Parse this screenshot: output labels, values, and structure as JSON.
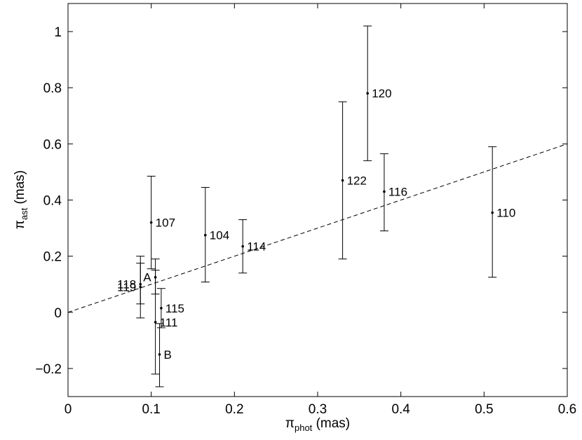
{
  "chart_data": {
    "type": "scatter",
    "title": "",
    "xlabel": {
      "symbol": "π",
      "subscript": "phot",
      "unit": " (mas)"
    },
    "ylabel": {
      "symbol": "π",
      "subscript": "ast",
      "unit": " (mas)"
    },
    "xlim": [
      0,
      0.6
    ],
    "ylim": [
      -0.3,
      1.1
    ],
    "xticks": [
      0,
      0.1,
      0.2,
      0.3,
      0.4,
      0.5,
      0.6
    ],
    "xtick_labels": [
      "0",
      "0.1",
      "0.2",
      "0.3",
      "0.4",
      "0.5",
      "0.6"
    ],
    "yticks": [
      -0.2,
      0,
      0.2,
      0.4,
      0.6,
      0.8,
      1.0
    ],
    "ytick_labels": [
      "−0.2",
      "0",
      "0.2",
      "0.4",
      "0.6",
      "0.8",
      "1"
    ],
    "grid": false,
    "reference_line": {
      "style": "dashed",
      "slope": 1,
      "intercept": 0
    },
    "points": [
      {
        "label": "120",
        "x": 0.36,
        "y": 0.78,
        "err_low": 0.54,
        "err_high": 1.02,
        "label_side": "right"
      },
      {
        "label": "122",
        "x": 0.33,
        "y": 0.47,
        "err_low": 0.19,
        "err_high": 0.75,
        "label_side": "right"
      },
      {
        "label": "116",
        "x": 0.38,
        "y": 0.43,
        "err_low": 0.29,
        "err_high": 0.565,
        "label_side": "right"
      },
      {
        "label": "110",
        "x": 0.51,
        "y": 0.355,
        "err_low": 0.125,
        "err_high": 0.59,
        "label_side": "right"
      },
      {
        "label": "107",
        "x": 0.1,
        "y": 0.32,
        "err_low": 0.155,
        "err_high": 0.485,
        "label_side": "right"
      },
      {
        "label": "104",
        "x": 0.165,
        "y": 0.275,
        "err_low": 0.108,
        "err_high": 0.445,
        "label_side": "right"
      },
      {
        "label": "114",
        "x": 0.21,
        "y": 0.235,
        "err_low": 0.14,
        "err_high": 0.33,
        "label_side": "right"
      },
      {
        "label": "118",
        "x": 0.087,
        "y": 0.1,
        "err_low": -0.02,
        "err_high": 0.2,
        "label_side": "left"
      },
      {
        "label": "119",
        "x": 0.087,
        "y": 0.09,
        "err_low": 0.03,
        "err_high": 0.175,
        "label_side": "left"
      },
      {
        "label": "A",
        "x": 0.105,
        "y": 0.125,
        "err_low": 0.065,
        "err_high": 0.19,
        "label_side": "left"
      },
      {
        "label": "115",
        "x": 0.112,
        "y": 0.015,
        "err_low": -0.055,
        "err_high": 0.085,
        "label_side": "right"
      },
      {
        "label": "111",
        "x": 0.105,
        "y": -0.035,
        "err_low": -0.22,
        "err_high": 0.15,
        "label_side": "right"
      },
      {
        "label": "B",
        "x": 0.11,
        "y": -0.15,
        "err_low": -0.265,
        "err_high": -0.04,
        "label_side": "right"
      }
    ]
  }
}
